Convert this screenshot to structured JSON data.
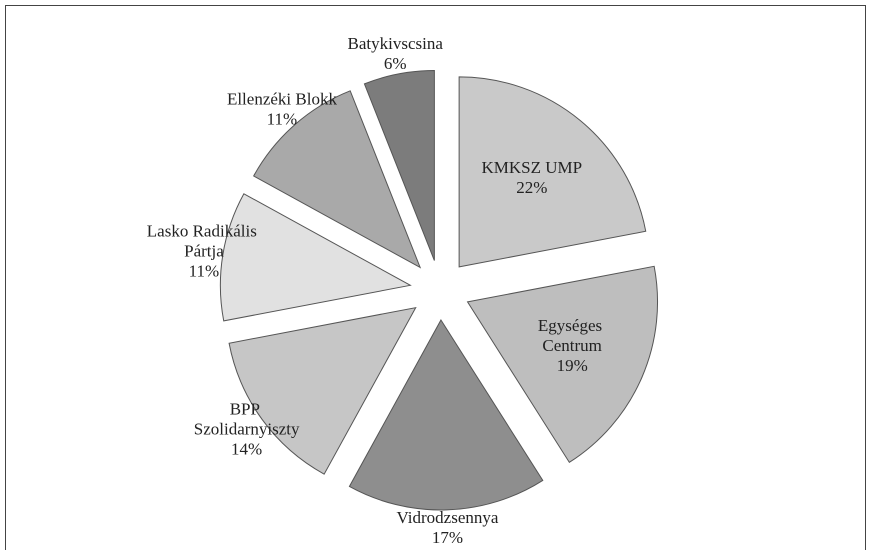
{
  "chart_data": {
    "type": "pie",
    "categories": [
      "KMKSZ UMP",
      "Egységes Centrum",
      "Vidrodzsennya",
      "BPP Szolidarnyiszty",
      "Lasko Radikális Pártja",
      "Ellenzéki Blokk",
      "Batykivscsina"
    ],
    "values": [
      22,
      19,
      17,
      14,
      11,
      11,
      6
    ],
    "value_labels": [
      "22%",
      "19%",
      "17%",
      "14%",
      "11%",
      "11%",
      "6%"
    ],
    "colors": [
      "#c9c9c9",
      "#bebebe",
      "#8e8e8e",
      "#c6c6c6",
      "#e1e1e1",
      "#a9a9a9",
      "#7c7c7c"
    ]
  }
}
